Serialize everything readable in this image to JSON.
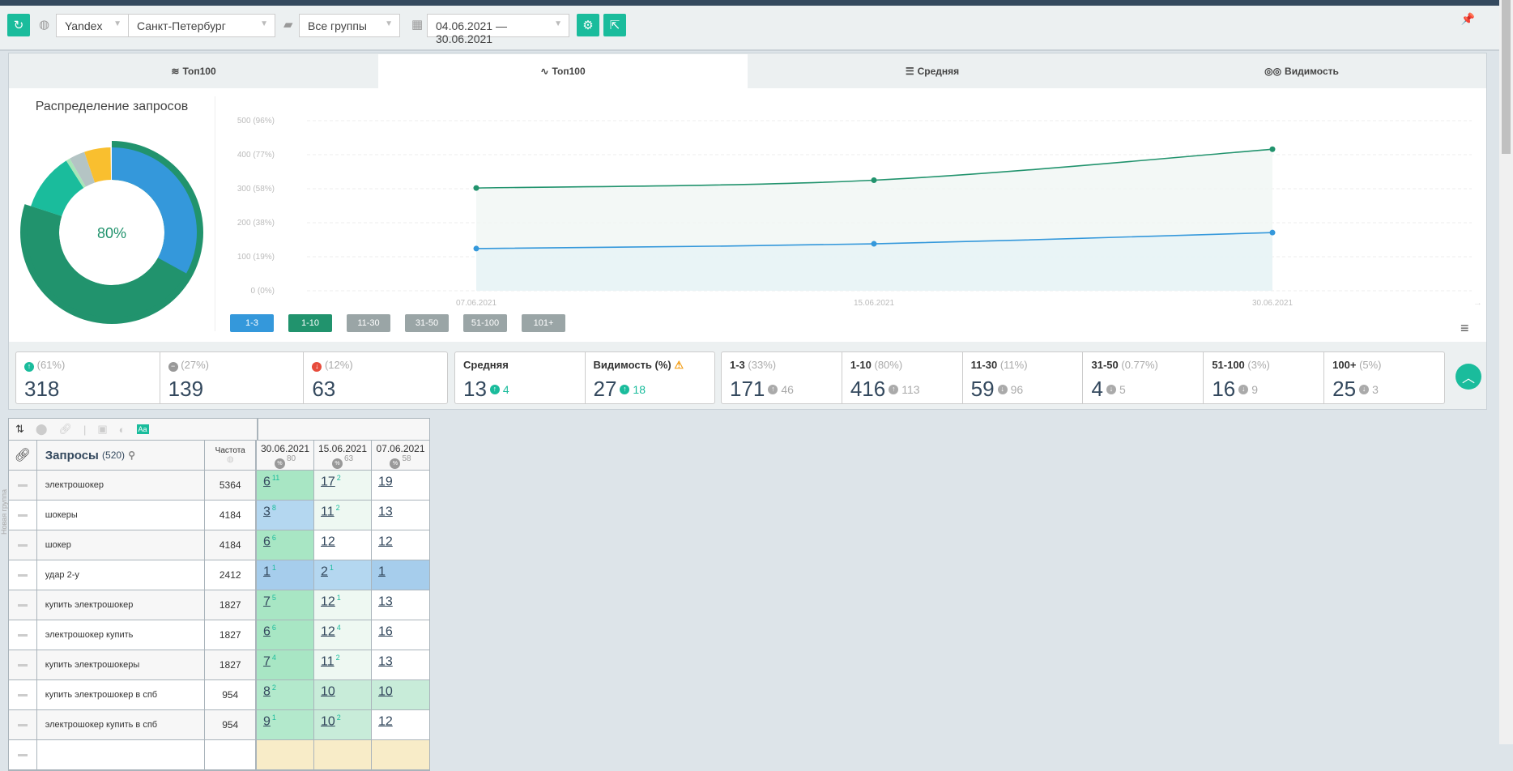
{
  "toolbar": {
    "engine": "Yandex",
    "region": "Санкт-Петербург",
    "group": "Все группы",
    "date_range": "04.06.2021 — 30.06.2021"
  },
  "tabs": [
    {
      "label": "Топ100",
      "icon": "layers-icon"
    },
    {
      "label": "Топ100",
      "icon": "line-chart-icon"
    },
    {
      "label": "Средняя",
      "icon": "sliders-icon"
    },
    {
      "label": "Видимость",
      "icon": "glasses-icon"
    }
  ],
  "donut": {
    "title": "Распределение запросов",
    "center": "80%",
    "segments": [
      {
        "name": "1-3",
        "pct": 33,
        "color": "#3498db"
      },
      {
        "name": "4-10",
        "pct": 47,
        "color": "#21936d"
      },
      {
        "name": "11-30",
        "pct": 11,
        "color": "#1abc9c"
      },
      {
        "name": "31-50",
        "pct": 0.77,
        "color": "#a8e6b8"
      },
      {
        "name": "51-100",
        "pct": 3,
        "color": "#b4c4c4"
      },
      {
        "name": "100+",
        "pct": 5,
        "color": "#f9bf2f"
      }
    ],
    "outer": {
      "name": "1-10",
      "pct": 80,
      "color": "#21936d"
    }
  },
  "chart_data": {
    "type": "area",
    "x": [
      "07.06.2021",
      "15.06.2021",
      "30.06.2021"
    ],
    "yticks": [
      "0 (0%)",
      "100 (19%)",
      "200 (38%)",
      "300 (58%)",
      "400 (77%)",
      "500 (96%)"
    ],
    "ylim": [
      0,
      500
    ],
    "grid": true,
    "series": [
      {
        "name": "1-10",
        "values": [
          302,
          325,
          416
        ],
        "color": "#21936d"
      },
      {
        "name": "1-3",
        "values": [
          124,
          138,
          171
        ],
        "color": "#3498db"
      }
    ]
  },
  "legend": [
    {
      "label": "1-3",
      "color": "#3498db"
    },
    {
      "label": "1-10",
      "color": "#21936d"
    },
    {
      "label": "11-30",
      "color": "#9aa5a6"
    },
    {
      "label": "31-50",
      "color": "#9aa5a6"
    },
    {
      "label": "51-100",
      "color": "#9aa5a6"
    },
    {
      "label": "101+",
      "color": "#9aa5a6"
    }
  ],
  "stats_dyn": [
    {
      "pct": "(61%)",
      "value": "318",
      "icon": "arrow-up-circle-icon",
      "color": "#1abc9c"
    },
    {
      "pct": "(27%)",
      "value": "139",
      "icon": "minus-circle-icon",
      "color": "#999"
    },
    {
      "pct": "(12%)",
      "value": "63",
      "icon": "arrow-down-circle-icon",
      "color": "#e74c3c"
    }
  ],
  "stats_avg": [
    {
      "label": "Средняя",
      "value": "13",
      "change": "4"
    },
    {
      "label": "Видимость (%)",
      "value": "27",
      "change": "18"
    }
  ],
  "stats_ranges": [
    {
      "label": "1-3",
      "pct": "(33%)",
      "value": "171",
      "change": "46",
      "dir": "up"
    },
    {
      "label": "1-10",
      "pct": "(80%)",
      "value": "416",
      "change": "113",
      "dir": "up"
    },
    {
      "label": "11-30",
      "pct": "(11%)",
      "value": "59",
      "change": "96",
      "dir": "down"
    },
    {
      "label": "31-50",
      "pct": "(0.77%)",
      "value": "4",
      "change": "5",
      "dir": "down"
    },
    {
      "label": "51-100",
      "pct": "(3%)",
      "value": "16",
      "change": "9",
      "dir": "down"
    },
    {
      "label": "100+",
      "pct": "(5%)",
      "value": "25",
      "change": "3",
      "dir": "down"
    }
  ],
  "table": {
    "side_label": "Новая группа",
    "queries_label": "Запросы",
    "queries_count": "(520)",
    "freq_label": "Частота",
    "dates": [
      {
        "date": "30.06.2021",
        "vis": "80"
      },
      {
        "date": "15.06.2021",
        "vis": "63"
      },
      {
        "date": "07.06.2021",
        "vis": "58"
      }
    ],
    "rows": [
      {
        "q": "электрошокер",
        "f": "5364",
        "p": [
          {
            "v": "6",
            "d": "11",
            "bg": "#a8e6c4"
          },
          {
            "v": "17",
            "d": "2",
            "bg": "#eef8f2"
          },
          {
            "v": "19",
            "d": "",
            "bg": "#ffffff"
          }
        ]
      },
      {
        "q": "шокеры",
        "f": "4184",
        "p": [
          {
            "v": "3",
            "d": "8",
            "bg": "#b4d7f0"
          },
          {
            "v": "11",
            "d": "2",
            "bg": "#eef8f2"
          },
          {
            "v": "13",
            "d": "",
            "bg": "#ffffff"
          }
        ]
      },
      {
        "q": "шокер",
        "f": "4184",
        "p": [
          {
            "v": "6",
            "d": "6",
            "bg": "#a8e6c4"
          },
          {
            "v": "12",
            "d": "",
            "bg": "#ffffff"
          },
          {
            "v": "12",
            "d": "",
            "bg": "#ffffff"
          }
        ]
      },
      {
        "q": "удар 2-у",
        "f": "2412",
        "p": [
          {
            "v": "1",
            "d": "1",
            "bg": "#a6cdec"
          },
          {
            "v": "2",
            "d": "1",
            "bg": "#b4d7f0"
          },
          {
            "v": "1",
            "d": "",
            "bg": "#a6cdec"
          }
        ]
      },
      {
        "q": "купить электрошокер",
        "f": "1827",
        "p": [
          {
            "v": "7",
            "d": "5",
            "bg": "#a8e6c4"
          },
          {
            "v": "12",
            "d": "1",
            "bg": "#eef8f2"
          },
          {
            "v": "13",
            "d": "",
            "bg": "#ffffff"
          }
        ]
      },
      {
        "q": "электрошокер купить",
        "f": "1827",
        "p": [
          {
            "v": "6",
            "d": "6",
            "bg": "#a8e6c4"
          },
          {
            "v": "12",
            "d": "4",
            "bg": "#eef8f2"
          },
          {
            "v": "16",
            "d": "",
            "bg": "#ffffff"
          }
        ]
      },
      {
        "q": "купить электрошокеры",
        "f": "1827",
        "p": [
          {
            "v": "7",
            "d": "4",
            "bg": "#a8e6c4"
          },
          {
            "v": "11",
            "d": "2",
            "bg": "#eef8f2"
          },
          {
            "v": "13",
            "d": "",
            "bg": "#ffffff"
          }
        ]
      },
      {
        "q": "купить электрошокер в спб",
        "f": "954",
        "p": [
          {
            "v": "8",
            "d": "2",
            "bg": "#b3e9cc"
          },
          {
            "v": "10",
            "d": "",
            "bg": "#c8ecd9"
          },
          {
            "v": "10",
            "d": "",
            "bg": "#c8ecd9"
          }
        ]
      },
      {
        "q": "электрошокер купить в спб",
        "f": "954",
        "p": [
          {
            "v": "9",
            "d": "1",
            "bg": "#b3e9cc"
          },
          {
            "v": "10",
            "d": "2",
            "bg": "#c8ecd9"
          },
          {
            "v": "12",
            "d": "",
            "bg": "#ffffff"
          }
        ]
      },
      {
        "q": "",
        "f": "",
        "p": [
          {
            "v": "",
            "d": "",
            "bg": "#f8ecc8"
          },
          {
            "v": "",
            "d": "",
            "bg": "#f8ecc8"
          },
          {
            "v": "",
            "d": "",
            "bg": "#f8ecc8"
          }
        ]
      }
    ]
  }
}
